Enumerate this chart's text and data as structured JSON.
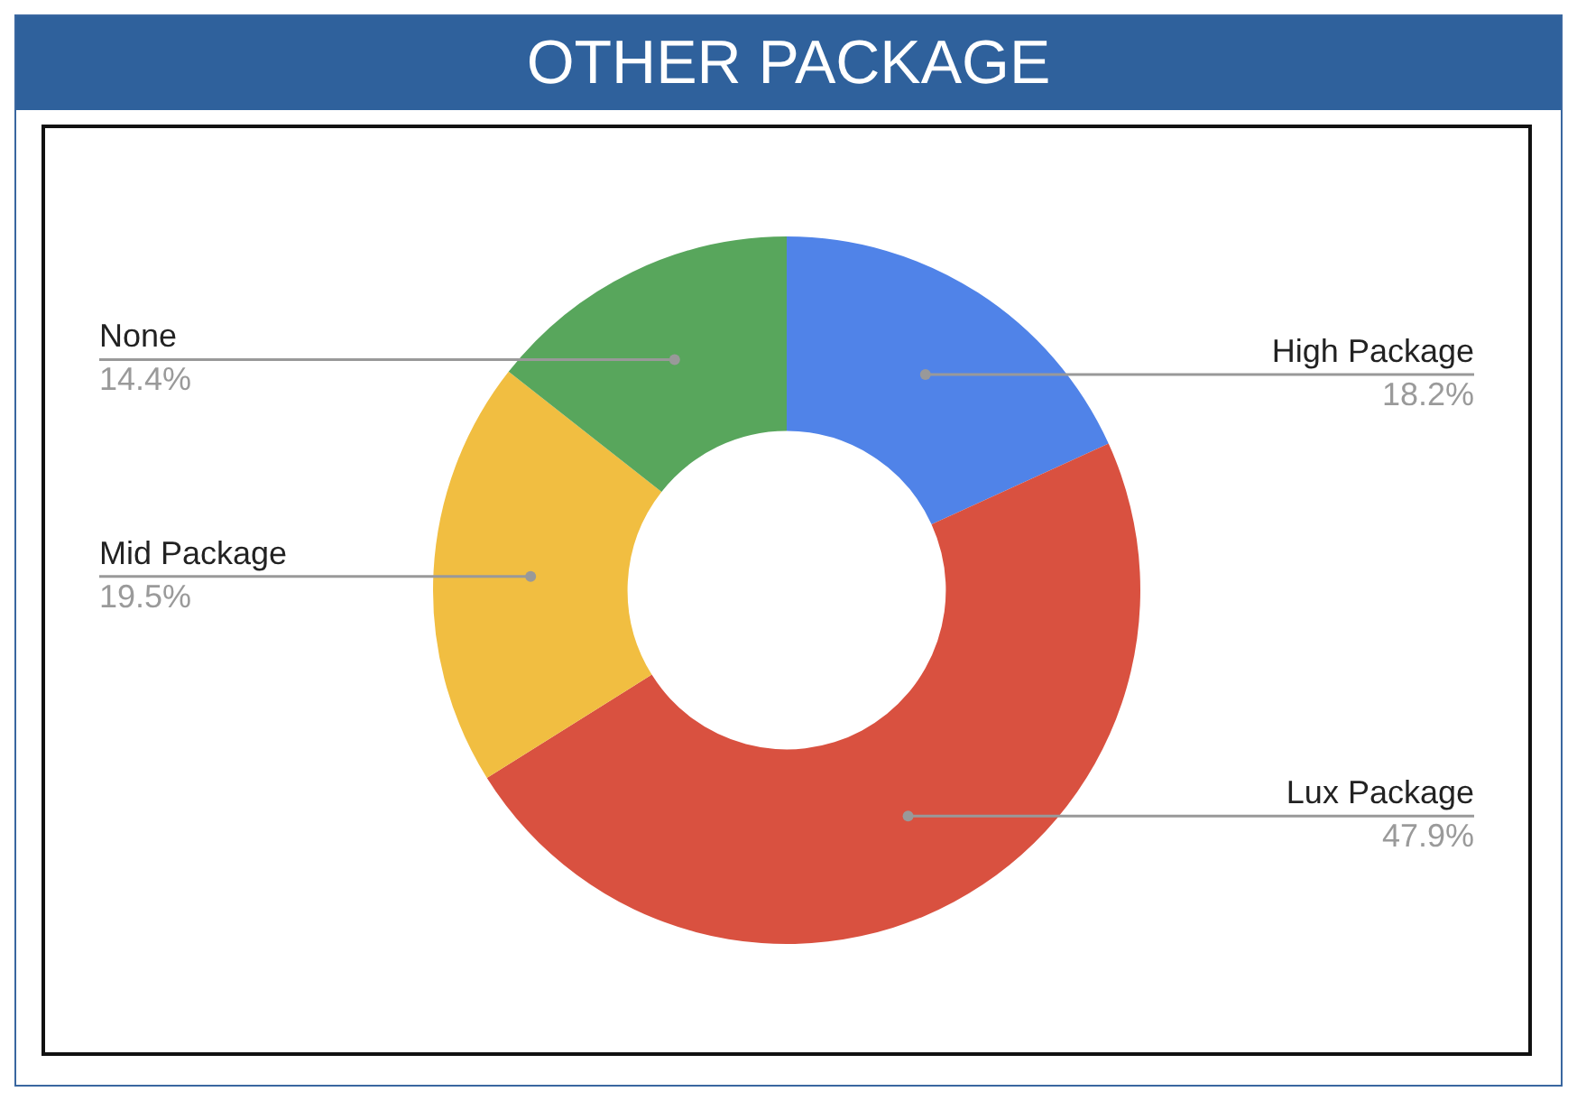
{
  "chart_data": {
    "type": "donut",
    "title": "OTHER PACKAGE",
    "categories": [
      "High Package",
      "Lux Package",
      "Mid Package",
      "None"
    ],
    "values": [
      18.2,
      47.9,
      19.5,
      14.4
    ],
    "colors": [
      "#5083e8",
      "#d95140",
      "#f1be41",
      "#58a65c"
    ],
    "value_labels": [
      "18.2%",
      "47.9%",
      "19.5%",
      "14.4%"
    ],
    "legend": false
  }
}
